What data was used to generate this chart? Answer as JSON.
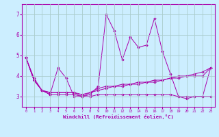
{
  "xlabel": "Windchill (Refroidissement éolien,°C)",
  "ylabel": "",
  "background_color": "#cceeff",
  "grid_color": "#aacccc",
  "line_color": "#aa00aa",
  "xlim": [
    -0.5,
    23.5
  ],
  "ylim": [
    2.5,
    7.5
  ],
  "yticks": [
    3,
    4,
    5,
    6,
    7
  ],
  "xticks": [
    0,
    1,
    2,
    3,
    4,
    5,
    6,
    7,
    8,
    9,
    10,
    11,
    12,
    13,
    14,
    15,
    16,
    17,
    18,
    19,
    20,
    21,
    22,
    23
  ],
  "series": [
    [
      4.9,
      3.8,
      3.3,
      3.1,
      4.4,
      3.9,
      3.0,
      3.0,
      3.1,
      3.5,
      7.0,
      6.2,
      4.8,
      5.9,
      5.4,
      5.5,
      6.8,
      5.2,
      4.1,
      3.0,
      2.9,
      3.0,
      3.0,
      4.4
    ],
    [
      4.9,
      3.8,
      3.3,
      3.2,
      3.2,
      3.2,
      3.2,
      3.0,
      3.2,
      3.4,
      3.5,
      3.5,
      3.6,
      3.6,
      3.7,
      3.7,
      3.8,
      3.8,
      3.9,
      4.0,
      4.0,
      4.1,
      4.2,
      4.4
    ],
    [
      4.9,
      3.9,
      3.3,
      3.2,
      3.2,
      3.2,
      3.2,
      3.1,
      3.2,
      3.3,
      3.4,
      3.5,
      3.5,
      3.6,
      3.6,
      3.7,
      3.7,
      3.8,
      3.9,
      3.9,
      4.0,
      4.0,
      4.0,
      4.4
    ],
    [
      4.9,
      3.8,
      3.3,
      3.1,
      3.1,
      3.1,
      3.1,
      3.0,
      3.0,
      3.1,
      3.1,
      3.1,
      3.1,
      3.1,
      3.1,
      3.1,
      3.1,
      3.1,
      3.1,
      3.0,
      3.0,
      3.0,
      3.0,
      3.0
    ]
  ]
}
